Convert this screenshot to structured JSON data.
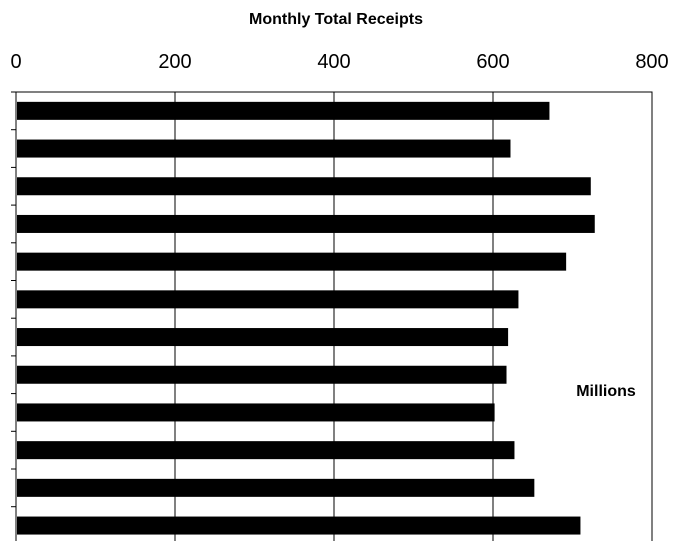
{
  "chart_data": {
    "type": "bar",
    "orientation": "horizontal",
    "title": "Monthly Total Receipts",
    "unit_label": "Millions",
    "xlim": [
      0,
      800
    ],
    "x_ticks": [
      0,
      200,
      400,
      600,
      800
    ],
    "x_tick_labels": [
      "0",
      "200",
      "400",
      "600",
      "800"
    ],
    "x_axis_position": "top",
    "grid": "vertical",
    "values": [
      671,
      622,
      723,
      728,
      692,
      632,
      619,
      617,
      602,
      627,
      652,
      710
    ],
    "bar_color": "#000000"
  }
}
